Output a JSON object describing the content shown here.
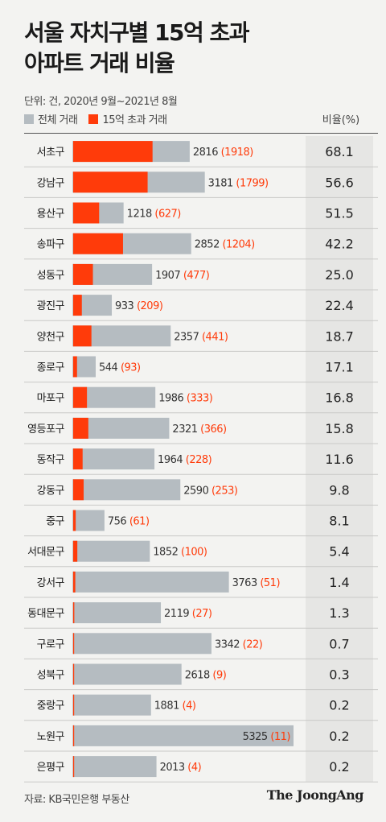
{
  "header": {
    "title_line1": "서울 자치구별 15억 초과",
    "title_line2": "아파트 거래 비율",
    "unit_note": "단위: 건, 2020년 9월~2021년 8월"
  },
  "legend": {
    "total_label": "전체 거래",
    "over_label": "15억 초과 거래",
    "ratio_label": "비율(%)"
  },
  "colors": {
    "total": "#b5bcc1",
    "over": "#ff3b0a",
    "ratio_bg": "#e6e6e4"
  },
  "chart_data": {
    "type": "bar",
    "categories": [
      "서초구",
      "강남구",
      "용산구",
      "송파구",
      "성동구",
      "광진구",
      "양천구",
      "종로구",
      "마포구",
      "영등포구",
      "동작구",
      "강동구",
      "중구",
      "서대문구",
      "강서구",
      "동대문구",
      "구로구",
      "성북구",
      "중랑구",
      "노원구",
      "은평구"
    ],
    "series": [
      {
        "name": "전체 거래",
        "values": [
          2816,
          3181,
          1218,
          2852,
          1907,
          933,
          2357,
          544,
          1986,
          2321,
          1964,
          2590,
          756,
          1852,
          3763,
          2119,
          3342,
          2618,
          1881,
          5325,
          2013
        ]
      },
      {
        "name": "15억 초과 거래",
        "values": [
          1918,
          1799,
          627,
          1204,
          477,
          209,
          441,
          93,
          333,
          366,
          228,
          253,
          61,
          100,
          51,
          27,
          22,
          9,
          4,
          11,
          4
        ]
      }
    ],
    "ratios": [
      "68.1",
      "56.6",
      "51.5",
      "42.2",
      "25.0",
      "22.4",
      "18.7",
      "17.1",
      "16.8",
      "15.8",
      "11.6",
      "9.8",
      "8.1",
      "5.4",
      "1.4",
      "1.3",
      "0.7",
      "0.3",
      "0.2",
      "0.2",
      "0.2"
    ],
    "xlim": [
      0,
      5325
    ]
  },
  "footer": {
    "source": "자료: KB국민은행 부동산",
    "logo": "The JoongAng"
  }
}
